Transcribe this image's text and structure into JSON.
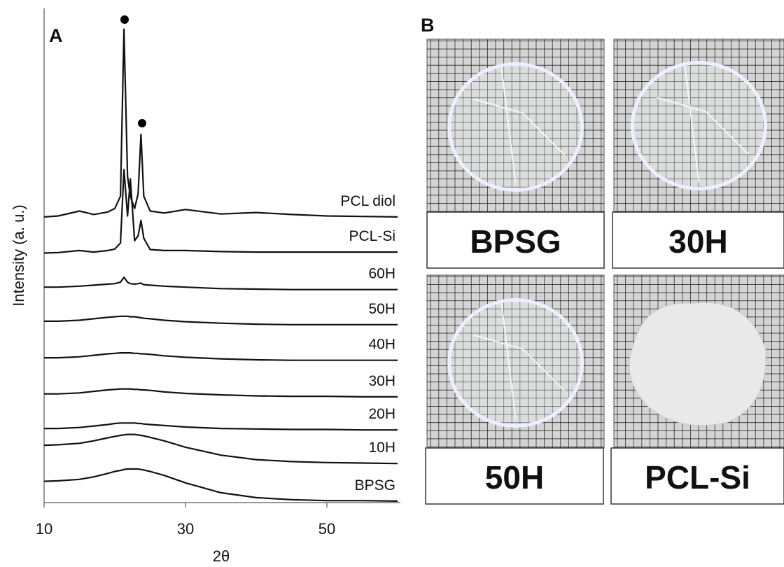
{
  "chart_data": {
    "type": "line",
    "panel_label": "A",
    "xlabel": "2θ",
    "ylabel": "Intensity (a. u.)",
    "x": [
      10,
      12,
      15,
      17,
      19,
      20,
      20.8,
      21.3,
      21.8,
      22.2,
      22.8,
      23.3,
      23.7,
      24.1,
      25,
      27,
      30,
      35,
      40,
      45,
      50,
      55,
      60
    ],
    "xlim": [
      10,
      60
    ],
    "xticks": [
      10,
      30,
      50
    ],
    "ylim": [
      0,
      100
    ],
    "series": [
      {
        "name": "BPSG",
        "color": "#111111",
        "values": [
          4.3,
          4.4,
          4.7,
          5.2,
          5.9,
          6.3,
          6.5,
          6.7,
          6.8,
          6.8,
          6.8,
          6.8,
          6.7,
          6.6,
          6.3,
          5.5,
          4.0,
          2.0,
          1.0,
          0.6,
          0.4,
          0.4,
          0.3
        ]
      },
      {
        "name": "10H",
        "color": "#111111",
        "values": [
          11.6,
          11.7,
          12.0,
          12.5,
          13.1,
          13.4,
          13.6,
          13.7,
          13.8,
          13.8,
          13.8,
          13.7,
          13.6,
          13.5,
          13.2,
          12.5,
          11.2,
          9.6,
          8.7,
          8.3,
          8.1,
          8.0,
          7.9
        ]
      },
      {
        "name": "20H",
        "color": "#111111",
        "values": [
          15.0,
          15.0,
          15.2,
          15.5,
          15.8,
          16.0,
          16.1,
          16.1,
          16.1,
          16.1,
          16.1,
          16.0,
          16.0,
          15.9,
          15.8,
          15.6,
          15.3,
          15.0,
          14.9,
          14.8,
          14.8,
          14.7,
          14.7
        ]
      },
      {
        "name": "30H",
        "color": "#111111",
        "values": [
          22.0,
          22.0,
          22.2,
          22.5,
          22.8,
          22.9,
          23.0,
          23.0,
          23.0,
          23.0,
          22.9,
          22.9,
          22.8,
          22.8,
          22.7,
          22.4,
          22.1,
          21.8,
          21.6,
          21.5,
          21.5,
          21.4,
          21.4
        ]
      },
      {
        "name": "40H",
        "color": "#111111",
        "values": [
          29.3,
          29.3,
          29.5,
          29.8,
          30.1,
          30.2,
          30.3,
          30.3,
          30.3,
          30.3,
          30.2,
          30.2,
          30.1,
          30.1,
          30.0,
          29.7,
          29.4,
          29.1,
          28.9,
          28.8,
          28.8,
          28.8,
          28.8
        ]
      },
      {
        "name": "50H",
        "color": "#111111",
        "values": [
          36.7,
          36.7,
          36.9,
          37.2,
          37.5,
          37.6,
          37.7,
          37.7,
          37.7,
          37.6,
          37.6,
          37.5,
          37.4,
          37.3,
          37.2,
          36.9,
          36.6,
          36.3,
          36.1,
          36.0,
          36.0,
          36.0,
          36.0
        ]
      },
      {
        "name": "60H",
        "color": "#111111",
        "values": [
          43.6,
          43.6,
          43.8,
          44.0,
          44.2,
          44.3,
          44.6,
          45.6,
          44.6,
          44.3,
          44.2,
          44.3,
          44.4,
          44.1,
          44.0,
          43.8,
          43.6,
          43.3,
          43.2,
          43.1,
          43.1,
          43.1,
          43.1
        ]
      },
      {
        "name": "PCL-Si",
        "color": "#111111",
        "values": [
          50.5,
          50.6,
          51.0,
          50.7,
          51.0,
          51.3,
          52.5,
          67.4,
          58.0,
          65.5,
          53.0,
          54.0,
          57.1,
          53.5,
          51.2,
          51.0,
          51.0,
          50.8,
          50.7,
          50.7,
          50.7,
          50.7,
          50.7
        ]
      },
      {
        "name": "PCL diol",
        "color": "#111111",
        "values": [
          57.8,
          58.0,
          59.0,
          58.3,
          58.8,
          59.5,
          62.0,
          95.8,
          66.0,
          62.0,
          59.5,
          62.5,
          74.5,
          62.0,
          59.0,
          58.6,
          59.3,
          58.4,
          58.7,
          58.3,
          58.0,
          57.9,
          57.8
        ]
      }
    ]
  },
  "panel_b": {
    "label": "B",
    "photos": [
      "BPSG",
      "30H",
      "50H",
      "PCL-Si"
    ]
  }
}
